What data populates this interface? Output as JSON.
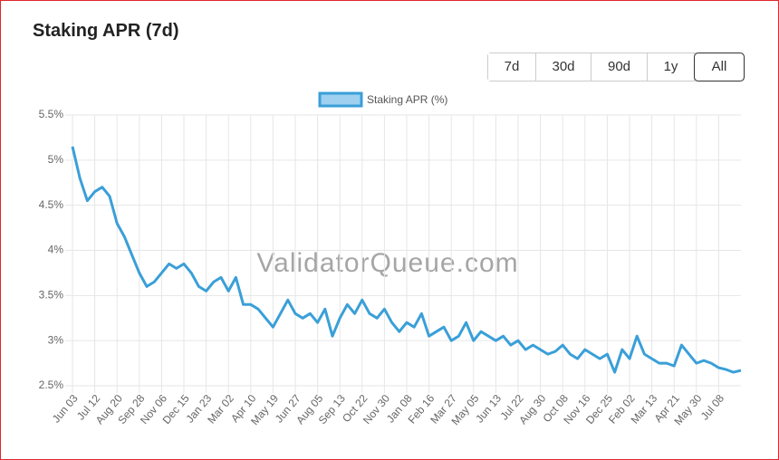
{
  "header": {
    "title": "Staking APR (7d)"
  },
  "buttons": [
    {
      "label": "7d"
    },
    {
      "label": "30d"
    },
    {
      "label": "90d"
    },
    {
      "label": "1y"
    },
    {
      "label": "All",
      "active": true
    }
  ],
  "watermark": "ValidatorQueue.com",
  "chart_data": {
    "type": "line",
    "categories": [
      "Jun 03",
      null,
      null,
      "Jul 12",
      null,
      null,
      "Aug 20",
      null,
      null,
      "Sep 28",
      null,
      null,
      "Nov 06",
      null,
      null,
      "Dec 15",
      null,
      null,
      "Jan 23",
      null,
      null,
      "Mar 02",
      null,
      null,
      "Apr 10",
      null,
      null,
      "May 19",
      null,
      null,
      "Jun 27",
      null,
      null,
      "Aug 05",
      null,
      null,
      "Sep 13",
      null,
      null,
      "Oct 22",
      null,
      null,
      "Nov 30",
      null,
      null,
      "Jan 08",
      null,
      null,
      "Feb 16",
      null,
      null,
      "Mar 27",
      null,
      null,
      "May 05",
      null,
      null,
      "Jun 13",
      null,
      null,
      "Jul 22",
      null,
      null,
      "Aug 30",
      null,
      null,
      "Oct 08",
      null,
      null,
      "Nov 16",
      null,
      null,
      "Dec 25",
      null,
      null,
      "Feb 02",
      null,
      null,
      "Mar 13",
      null,
      null,
      "Apr 21",
      null,
      null,
      "May 30",
      null,
      null,
      "Jul 08",
      null,
      null,
      null
    ],
    "series": [
      {
        "name": "Staking APR (%)",
        "color": "#3a9fd8",
        "fill": "#9fd0f0",
        "values": [
          5.15,
          4.8,
          4.55,
          4.65,
          4.7,
          4.6,
          4.3,
          4.15,
          3.95,
          3.75,
          3.6,
          3.65,
          3.75,
          3.85,
          3.8,
          3.85,
          3.75,
          3.6,
          3.55,
          3.65,
          3.7,
          3.55,
          3.7,
          3.4,
          3.4,
          3.35,
          3.25,
          3.15,
          3.3,
          3.45,
          3.3,
          3.25,
          3.3,
          3.2,
          3.35,
          3.05,
          3.25,
          3.4,
          3.3,
          3.45,
          3.3,
          3.25,
          3.35,
          3.2,
          3.1,
          3.2,
          3.15,
          3.3,
          3.05,
          3.1,
          3.15,
          3.0,
          3.05,
          3.2,
          3.0,
          3.1,
          3.05,
          3.0,
          3.05,
          2.95,
          3.0,
          2.9,
          2.95,
          2.9,
          2.85,
          2.88,
          2.95,
          2.85,
          2.8,
          2.9,
          2.85,
          2.8,
          2.85,
          2.65,
          2.9,
          2.8,
          3.05,
          2.85,
          2.8,
          2.75,
          2.75,
          2.72,
          2.95,
          2.85,
          2.75,
          2.78,
          2.75,
          2.7,
          2.68,
          2.65,
          2.67
        ]
      }
    ],
    "ylim": [
      2.5,
      5.5
    ],
    "yticks": [
      {
        "value": 2.5,
        "label": "2.5%"
      },
      {
        "value": 3,
        "label": "3%"
      },
      {
        "value": 3.5,
        "label": "3.5%"
      },
      {
        "value": 4,
        "label": "4%"
      },
      {
        "value": 4.5,
        "label": "4.5%"
      },
      {
        "value": 5,
        "label": "5%"
      },
      {
        "value": 5.5,
        "label": "5.5%"
      }
    ],
    "grid": true,
    "legend": "top"
  }
}
